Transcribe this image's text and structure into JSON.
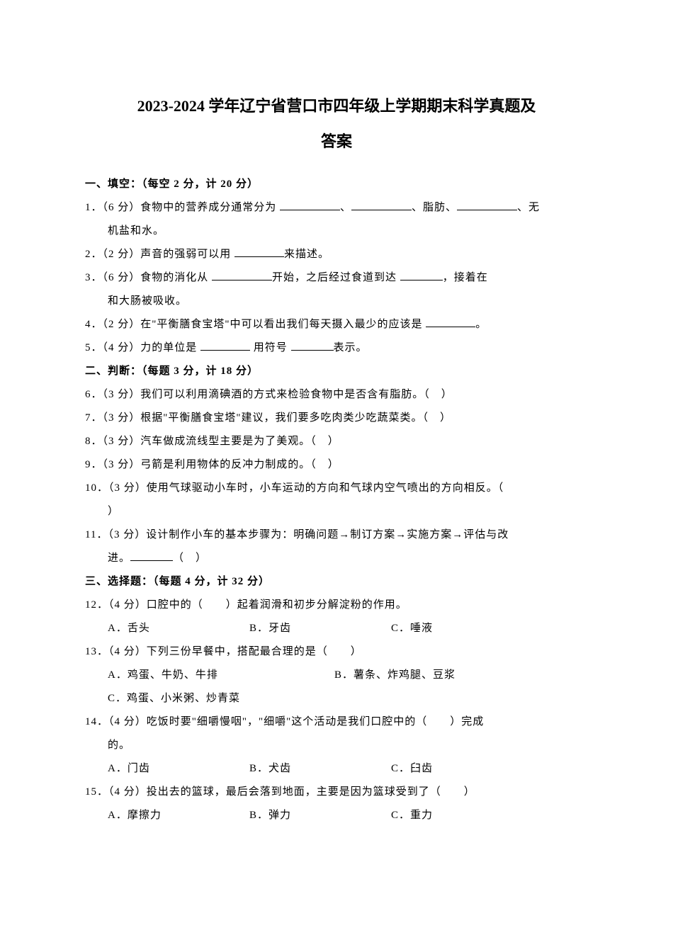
{
  "title_line1": "2023-2024 学年辽宁省营口市四年级上学期期末科学真题及",
  "title_line2": "答案",
  "section1": {
    "header": "一、填空：（每空 2 分，计 20 分）",
    "q1_a": "1．（6 分）食物中的营养成分通常分为 ",
    "q1_b": "、",
    "q1_c": "、脂肪、",
    "q1_d": "、无",
    "q1_cont": "机盐和水。",
    "q2_a": "2．（2 分）声音的强弱可以用 ",
    "q2_b": "来描述。",
    "q3_a": "3．（6 分）食物的消化从  ",
    "q3_b": "开始，之后经过食道到达  ",
    "q3_c": "，接着在",
    "q3_cont": "和大肠被吸收。",
    "q4_a": "4．（2 分）在\"平衡膳食宝塔\"中可以看出我们每天摄入最少的应该是 ",
    "q4_b": "。",
    "q5_a": "5．（4 分）力的单位是 ",
    "q5_b": " 用符号 ",
    "q5_c": "表示。"
  },
  "section2": {
    "header": "二、判断：（每题 3 分，计 18 分）",
    "q6": "6．（3 分）我们可以利用滴碘酒的方式来检验食物中是否含有脂肪。（　）",
    "q7": "7．（3 分）根据\"平衡膳食宝塔\"建议，我们要多吃肉类少吃蔬菜类。（　）",
    "q8": "8．（3 分）汽车做成流线型主要是为了美观。（　）",
    "q9": "9．（3 分）弓箭是利用物体的反冲力制成的。（　）",
    "q10": "10．（3 分）使用气球驱动小车时，小车运动的方向和气球内空气喷出的方向相反。（",
    "q10_cont": "）",
    "q11_a": "11．（3 分）设计制作小车的基本步骤为：明确问题→制订方案→实施方案→评估与改",
    "q11_cont_a": "进。",
    "q11_cont_b": "（　）"
  },
  "section3": {
    "header": "三、选择题：（每题 4 分，计 32 分）",
    "q12": "12．（4 分）口腔中的（　　）起着润滑和初步分解淀粉的作用。",
    "q12a": "A．舌头",
    "q12b": "B．牙齿",
    "q12c": "C．唾液",
    "q13": "13．（4 分）下列三份早餐中，搭配最合理的是（　　）",
    "q13a": "A．鸡蛋、牛奶、牛排",
    "q13b": "B．薯条、炸鸡腿、豆浆",
    "q13c": "C．鸡蛋、小米粥、炒青菜",
    "q14": "14．（4 分）吃饭时要\"细嚼慢咽\"，\"细嚼\"这个活动是我们口腔中的（　　）完成",
    "q14_cont": "的。",
    "q14a": "A．门齿",
    "q14b": "B．犬齿",
    "q14c": "C．臼齿",
    "q15": "15．（4 分）投出去的篮球，最后会落到地面，主要是因为篮球受到了（　　）",
    "q15a": "A．摩擦力",
    "q15b": "B．弹力",
    "q15c": "C．重力"
  }
}
